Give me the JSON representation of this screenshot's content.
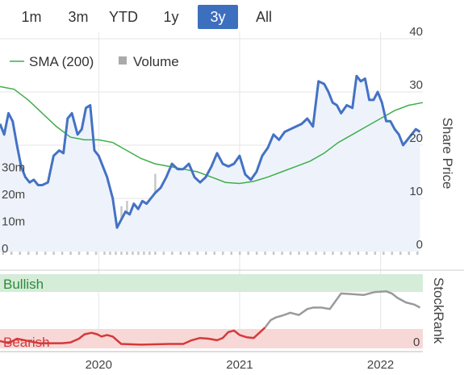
{
  "range_tabs": [
    {
      "label": "1m",
      "active": false
    },
    {
      "label": "3m",
      "active": false
    },
    {
      "label": "YTD",
      "active": false
    },
    {
      "label": "1y",
      "active": false
    },
    {
      "label": "3y",
      "active": true
    },
    {
      "label": "All",
      "active": false
    }
  ],
  "colors": {
    "price": "#4472c4",
    "sma": "#3fae49",
    "volume": "#c8c8c8",
    "bullish_band": "#d4ecd8",
    "bearish_band": "#f8d7d7",
    "rank_bearish": "#d33a3a",
    "rank_neutral": "#9a9a9a",
    "active_tab": "#3d6fbf"
  },
  "chart_data": {
    "type": "line",
    "legend": [
      {
        "label": "SMA (200)",
        "symbol": "line",
        "color": "#3fae49"
      },
      {
        "label": "Volume",
        "symbol": "square",
        "color": "#aaaaaa"
      }
    ],
    "legend_position": "top-left",
    "x_axis": {
      "range": [
        2019.3,
        2022.3
      ],
      "ticks": [
        {
          "label": "2020",
          "value": 2020.0
        },
        {
          "label": "2021",
          "value": 2021.0
        },
        {
          "label": "2022",
          "value": 2022.0
        }
      ]
    },
    "price_axis": {
      "label": "Share Price",
      "side": "right",
      "range": [
        0,
        40
      ],
      "ticks": [
        {
          "label": "0",
          "value": 0
        },
        {
          "label": "10",
          "value": 10
        },
        {
          "label": "20",
          "value": 20
        },
        {
          "label": "30",
          "value": 30
        },
        {
          "label": "40",
          "value": 40
        }
      ]
    },
    "volume_axis": {
      "side": "left",
      "range": [
        0,
        40000000
      ],
      "ticks": [
        {
          "label": "0",
          "value": 0
        },
        {
          "label": "10m",
          "value": 10000000
        },
        {
          "label": "20m",
          "value": 20000000
        },
        {
          "label": "30m",
          "value": 30000000
        }
      ]
    },
    "grid": true,
    "price_series": {
      "name": "Share Price",
      "x": [
        2019.3,
        2019.33,
        2019.36,
        2019.39,
        2019.42,
        2019.45,
        2019.48,
        2019.51,
        2019.54,
        2019.57,
        2019.6,
        2019.64,
        2019.68,
        2019.72,
        2019.75,
        2019.78,
        2019.81,
        2019.85,
        2019.88,
        2019.91,
        2019.94,
        2019.97,
        2020.0,
        2020.03,
        2020.06,
        2020.1,
        2020.13,
        2020.16,
        2020.19,
        2020.22,
        2020.25,
        2020.28,
        2020.31,
        2020.34,
        2020.37,
        2020.4,
        2020.44,
        2020.48,
        2020.52,
        2020.56,
        2020.6,
        2020.64,
        2020.68,
        2020.72,
        2020.76,
        2020.8,
        2020.84,
        2020.88,
        2020.92,
        2020.96,
        2021.0,
        2021.04,
        2021.08,
        2021.12,
        2021.16,
        2021.2,
        2021.24,
        2021.28,
        2021.32,
        2021.36,
        2021.4,
        2021.44,
        2021.48,
        2021.52,
        2021.56,
        2021.6,
        2021.63,
        2021.66,
        2021.69,
        2021.72,
        2021.76,
        2021.8,
        2021.83,
        2021.86,
        2021.89,
        2021.92,
        2021.95,
        2021.98,
        2022.01,
        2022.04,
        2022.07,
        2022.1,
        2022.13,
        2022.16,
        2022.19,
        2022.22,
        2022.25,
        2022.28
      ],
      "values": [
        24,
        22,
        26,
        24.5,
        20,
        16,
        14,
        13,
        13.5,
        12.5,
        12.5,
        13,
        18,
        19,
        18.5,
        25,
        26,
        22,
        23,
        27,
        27.5,
        19,
        18,
        16,
        14,
        10,
        4.5,
        6,
        7.5,
        7,
        9,
        8,
        9.5,
        9,
        10,
        11,
        12,
        14,
        16.5,
        15.5,
        15.5,
        16.5,
        14,
        13,
        14,
        16,
        18.5,
        16.5,
        16,
        16.5,
        18,
        14.5,
        13.5,
        15,
        18,
        19.5,
        22,
        21,
        22.5,
        23,
        23.5,
        24,
        25,
        23.5,
        32,
        31.5,
        30,
        28,
        27.5,
        26,
        27.5,
        27,
        33,
        32,
        32.5,
        28.5,
        28.5,
        30,
        28,
        24.5,
        24.5,
        23,
        22,
        20,
        21,
        22,
        23,
        22.5
      ]
    },
    "sma_series": {
      "name": "SMA (200)",
      "x": [
        2019.3,
        2019.4,
        2019.5,
        2019.6,
        2019.7,
        2019.8,
        2019.9,
        2020.0,
        2020.1,
        2020.2,
        2020.3,
        2020.4,
        2020.5,
        2020.6,
        2020.7,
        2020.8,
        2020.9,
        2021.0,
        2021.1,
        2021.2,
        2021.3,
        2021.4,
        2021.5,
        2021.6,
        2021.7,
        2021.8,
        2021.9,
        2022.0,
        2022.1,
        2022.2,
        2022.3
      ],
      "values": [
        31,
        30.5,
        28.5,
        26,
        23.5,
        21.5,
        21,
        21,
        20.5,
        19,
        17.5,
        16.5,
        16,
        15.5,
        15,
        14,
        13,
        12.8,
        13.2,
        14,
        15,
        16,
        17,
        18.5,
        20.5,
        22,
        23.5,
        25,
        26.5,
        27.5,
        28
      ]
    },
    "volume_series": {
      "name": "Volume",
      "x": [
        2019.32,
        2019.38,
        2019.44,
        2019.5,
        2019.56,
        2019.62,
        2019.68,
        2019.74,
        2019.8,
        2019.86,
        2019.92,
        2019.98,
        2020.04,
        2020.08,
        2020.12,
        2020.16,
        2020.2,
        2020.24,
        2020.28,
        2020.32,
        2020.36,
        2020.4,
        2020.46,
        2020.52,
        2020.58,
        2020.64,
        2020.7,
        2020.76,
        2020.82,
        2020.88,
        2020.94,
        2021.0,
        2021.06,
        2021.12,
        2021.18,
        2021.24,
        2021.3,
        2021.36,
        2021.42,
        2021.48,
        2021.54,
        2021.6,
        2021.66,
        2021.72,
        2021.78,
        2021.84,
        2021.9,
        2021.96,
        2022.02,
        2022.08,
        2022.14,
        2022.2,
        2022.26
      ],
      "values": [
        4000000,
        9000000,
        6000000,
        12000000,
        3000000,
        7000000,
        2000000,
        9000000,
        3000000,
        8000000,
        2000000,
        2000000,
        5000000,
        4000000,
        14000000,
        18000000,
        20000000,
        16000000,
        4000000,
        6000000,
        10000000,
        30000000,
        8000000,
        5000000,
        3000000,
        2000000,
        7000000,
        3000000,
        8000000,
        2000000,
        4000000,
        6000000,
        3000000,
        9000000,
        2000000,
        5000000,
        3000000,
        7000000,
        4000000,
        3000000,
        2000000,
        11000000,
        6000000,
        9000000,
        4000000,
        8000000,
        10000000,
        3000000,
        5000000,
        12000000,
        3000000,
        4000000,
        6000000
      ]
    },
    "stockrank": {
      "label": "StockRank",
      "zones": [
        "Bullish",
        "Bearish"
      ],
      "ticks": [
        {
          "label": "0",
          "value": 0
        }
      ],
      "range": [
        0,
        100
      ],
      "x": [
        2019.3,
        2019.36,
        2019.42,
        2019.5,
        2019.58,
        2019.66,
        2019.74,
        2019.8,
        2019.86,
        2019.9,
        2019.95,
        2019.99,
        2020.02,
        2020.06,
        2020.1,
        2020.16,
        2020.3,
        2020.5,
        2020.6,
        2020.66,
        2020.72,
        2020.78,
        2020.84,
        2020.88,
        2020.92,
        2020.96,
        2021.0,
        2021.05,
        2021.1,
        2021.14,
        2021.18,
        2021.22,
        2021.26,
        2021.3,
        2021.36,
        2021.42,
        2021.48,
        2021.52,
        2021.58,
        2021.64,
        2021.72,
        2021.8,
        2021.88,
        2021.96,
        2022.04,
        2022.08,
        2022.12,
        2022.18,
        2022.24,
        2022.28
      ],
      "values": [
        10,
        7,
        13,
        10,
        7,
        7,
        7,
        8,
        13,
        19,
        21,
        19,
        16,
        18,
        16,
        6,
        5,
        6,
        6,
        11,
        14,
        13,
        11,
        14,
        22,
        24,
        18,
        15,
        14,
        21,
        28,
        38,
        42,
        44,
        48,
        45,
        53,
        55,
        55,
        53,
        74,
        73,
        72,
        76,
        77,
        74,
        68,
        62,
        59,
        55
      ]
    }
  }
}
